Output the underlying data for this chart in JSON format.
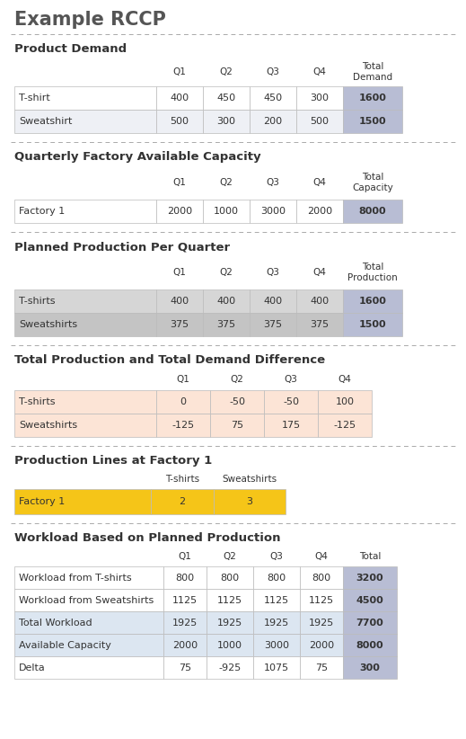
{
  "title": "Example RCCP",
  "bg_color": "#ffffff",
  "title_color": "#555555",
  "section1_title": "Product Demand",
  "section1_header": [
    "",
    "Q1",
    "Q2",
    "Q3",
    "Q4",
    "Total\nDemand"
  ],
  "section1_rows": [
    [
      "T-shirt",
      "400",
      "450",
      "450",
      "300",
      "1600"
    ],
    [
      "Sweatshirt",
      "500",
      "300",
      "200",
      "500",
      "1500"
    ]
  ],
  "section1_row_colors": [
    "#ffffff",
    "#eef0f5"
  ],
  "section1_total_col_color": "#b8bdd4",
  "section2_title": "Quarterly Factory Available Capacity",
  "section2_header": [
    "",
    "Q1",
    "Q2",
    "Q3",
    "Q4",
    "Total\nCapacity"
  ],
  "section2_rows": [
    [
      "Factory 1",
      "2000",
      "1000",
      "3000",
      "2000",
      "8000"
    ]
  ],
  "section2_row_colors": [
    "#ffffff"
  ],
  "section2_total_col_color": "#b8bdd4",
  "section3_title": "Planned Production Per Quarter",
  "section3_header": [
    "",
    "Q1",
    "Q2",
    "Q3",
    "Q4",
    "Total\nProduction"
  ],
  "section3_rows": [
    [
      "T-shirts",
      "400",
      "400",
      "400",
      "400",
      "1600"
    ],
    [
      "Sweatshirts",
      "375",
      "375",
      "375",
      "375",
      "1500"
    ]
  ],
  "section3_row_colors": [
    "#d6d6d6",
    "#c4c4c4"
  ],
  "section3_total_col_color": "#b8bdd4",
  "section4_title": "Total Production and Total Demand Difference",
  "section4_header": [
    "",
    "Q1",
    "Q2",
    "Q3",
    "Q4"
  ],
  "section4_rows": [
    [
      "T-shirts",
      "0",
      "-50",
      "-50",
      "100"
    ],
    [
      "Sweatshirts",
      "-125",
      "75",
      "175",
      "-125"
    ]
  ],
  "section4_row_colors": [
    "#fce4d6",
    "#fce4d6"
  ],
  "section5_title": "Production Lines at Factory 1",
  "section5_header": [
    "",
    "T-shirts",
    "Sweatshirts"
  ],
  "section5_rows": [
    [
      "Factory 1",
      "2",
      "3"
    ]
  ],
  "section5_row_colors": [
    "#f5c518"
  ],
  "section6_title": "Workload Based on Planned Production",
  "section6_header": [
    "",
    "Q1",
    "Q2",
    "Q3",
    "Q4",
    "Total"
  ],
  "section6_rows": [
    [
      "Workload from T-shirts",
      "800",
      "800",
      "800",
      "800",
      "3200"
    ],
    [
      "Workload from Sweatshirts",
      "1125",
      "1125",
      "1125",
      "1125",
      "4500"
    ],
    [
      "Total Workload",
      "1925",
      "1925",
      "1925",
      "1925",
      "7700"
    ],
    [
      "Available Capacity",
      "2000",
      "1000",
      "3000",
      "2000",
      "8000"
    ],
    [
      "Delta",
      "75",
      "-925",
      "1075",
      "75",
      "300"
    ]
  ],
  "section6_row_colors": [
    "#ffffff",
    "#ffffff",
    "#dce6f1",
    "#dce6f1",
    "#ffffff"
  ],
  "section6_total_col_color": "#b8bdd4"
}
